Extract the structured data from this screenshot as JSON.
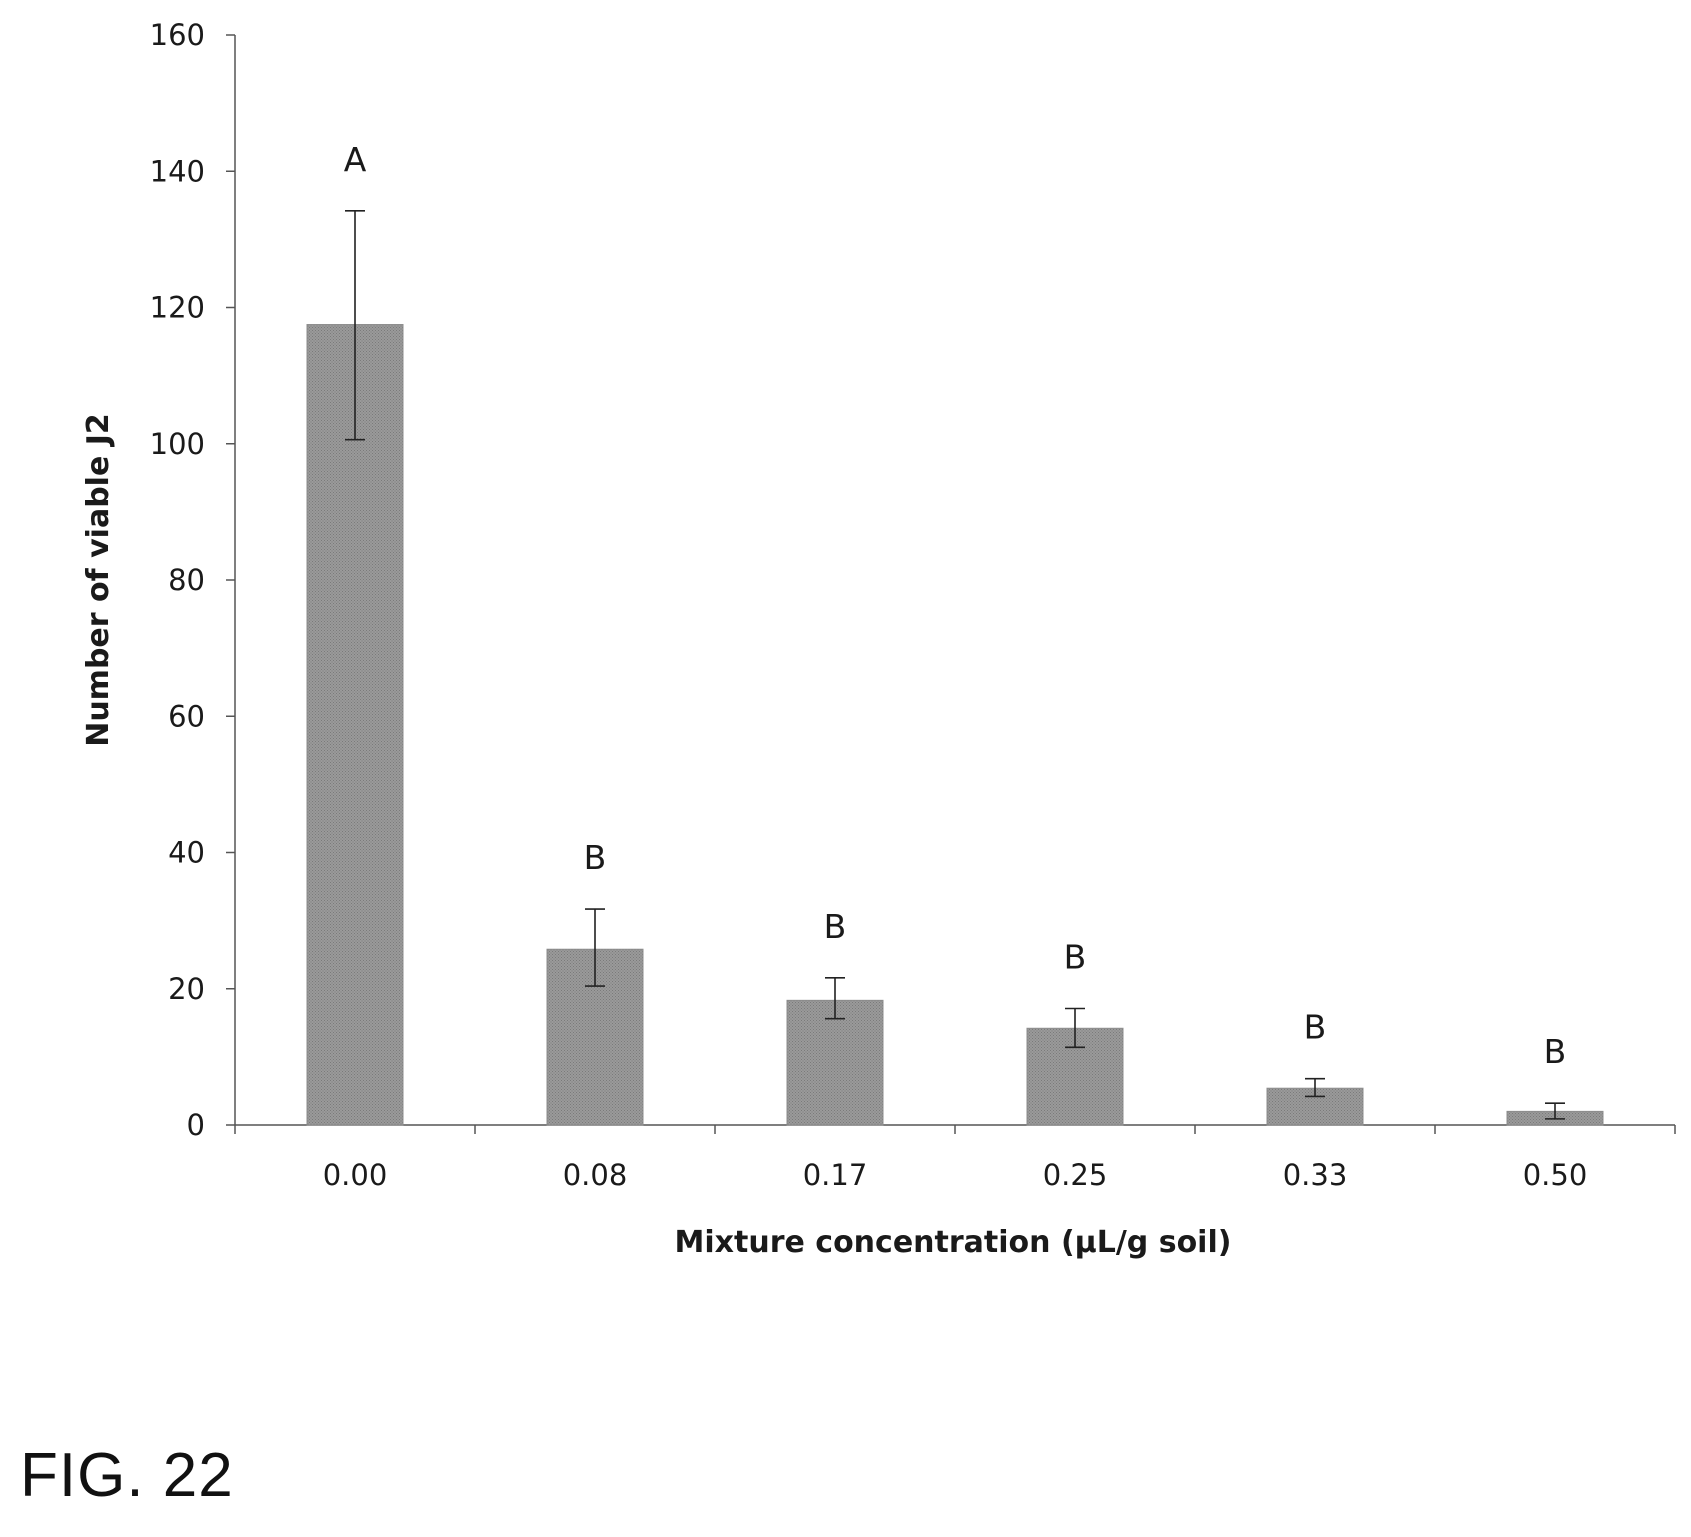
{
  "chart_data": {
    "type": "bar",
    "categories": [
      "0.00",
      "0.08",
      "0.17",
      "0.25",
      "0.33",
      "0.50"
    ],
    "values": [
      117.5,
      25.8,
      18.3,
      14.2,
      5.4,
      2.0
    ],
    "error_upper": [
      134.2,
      31.7,
      21.6,
      17.1,
      6.8,
      3.2
    ],
    "error_lower": [
      100.6,
      20.4,
      15.6,
      11.4,
      4.2,
      0.9
    ],
    "group_letters": [
      "A",
      "B",
      "B",
      "B",
      "B",
      "B"
    ],
    "xlabel": "Mixture concentration (µL/g soil)",
    "ylabel": "Number of viable J2",
    "ylim": [
      0,
      160
    ],
    "yticks": [
      0,
      20,
      40,
      60,
      80,
      100,
      120,
      140,
      160
    ],
    "bar_color": "#8c8c8c",
    "grid": false,
    "legend": "none"
  },
  "figure_label": "FIG. 22"
}
